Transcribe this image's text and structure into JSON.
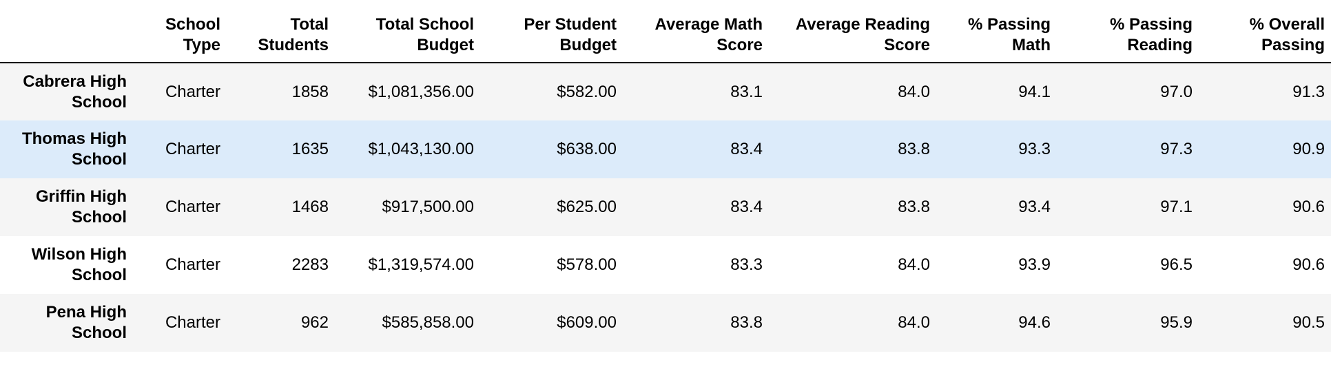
{
  "table": {
    "index_header": "",
    "columns": [
      "School Type",
      "Total Students",
      "Total School Budget",
      "Per Student Budget",
      "Average Math Score",
      "Average Reading Score",
      "% Passing Math",
      "% Passing Reading",
      "% Overall Passing"
    ],
    "rows": [
      {
        "school": "Cabrera High School",
        "cells": [
          "Charter",
          "1858",
          "$1,081,356.00",
          "$582.00",
          "83.1",
          "84.0",
          "94.1",
          "97.0",
          "91.3"
        ]
      },
      {
        "school": "Thomas High School",
        "cells": [
          "Charter",
          "1635",
          "$1,043,130.00",
          "$638.00",
          "83.4",
          "83.8",
          "93.3",
          "97.3",
          "90.9"
        ]
      },
      {
        "school": "Griffin High School",
        "cells": [
          "Charter",
          "1468",
          "$917,500.00",
          "$625.00",
          "83.4",
          "83.8",
          "93.4",
          "97.1",
          "90.6"
        ]
      },
      {
        "school": "Wilson High School",
        "cells": [
          "Charter",
          "2283",
          "$1,319,574.00",
          "$578.00",
          "83.3",
          "84.0",
          "93.9",
          "96.5",
          "90.6"
        ]
      },
      {
        "school": "Pena High School",
        "cells": [
          "Charter",
          "962",
          "$585,858.00",
          "$609.00",
          "83.8",
          "84.0",
          "94.6",
          "95.9",
          "90.5"
        ]
      }
    ],
    "row_colors": {
      "odd": "#f5f5f5",
      "even": "#ffffff",
      "hover": "#dcebfa"
    }
  }
}
